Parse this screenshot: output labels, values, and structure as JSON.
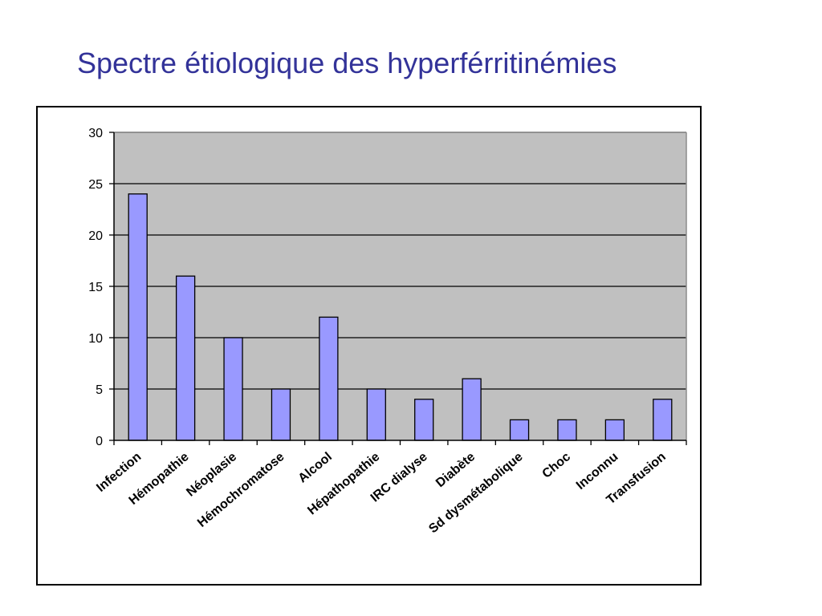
{
  "slide": {
    "title": "Spectre étiologique des hyperférritinémies"
  },
  "colors": {
    "title": "#333399",
    "plot_background": "#c0c0c0",
    "bar_fill": "#9999ff",
    "bar_stroke": "#000000",
    "gridline": "#000000"
  },
  "chart_data": {
    "type": "bar",
    "title": "",
    "xlabel": "",
    "ylabel": "",
    "categories": [
      "Infection",
      "Hémopathie",
      "Néoplasie",
      "Hémochromatose",
      "Alcool",
      "Hépathopathie",
      "IRC dialyse",
      "Diabète",
      "Sd dysmétabolique",
      "Choc",
      "Inconnu",
      "Transfusion"
    ],
    "values": [
      24,
      16,
      10,
      5,
      12,
      5,
      4,
      6,
      2,
      2,
      2,
      4
    ],
    "ylim": [
      0,
      30
    ],
    "yticks": [
      0,
      5,
      10,
      15,
      20,
      25,
      30
    ],
    "grid": true,
    "legend": "none"
  }
}
